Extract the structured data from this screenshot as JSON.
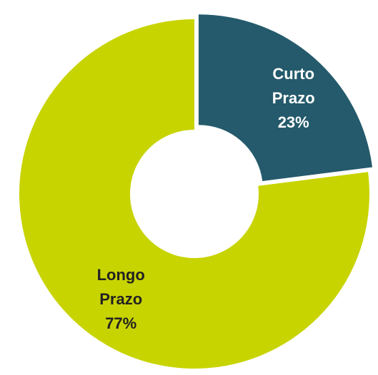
{
  "chart_data": {
    "type": "donut",
    "categories": [
      "Curto Prazo",
      "Longo Prazo"
    ],
    "values": [
      23,
      77
    ],
    "value_labels": [
      "23%",
      "77%"
    ],
    "colors": [
      "#245a6b",
      "#c8d400"
    ]
  }
}
